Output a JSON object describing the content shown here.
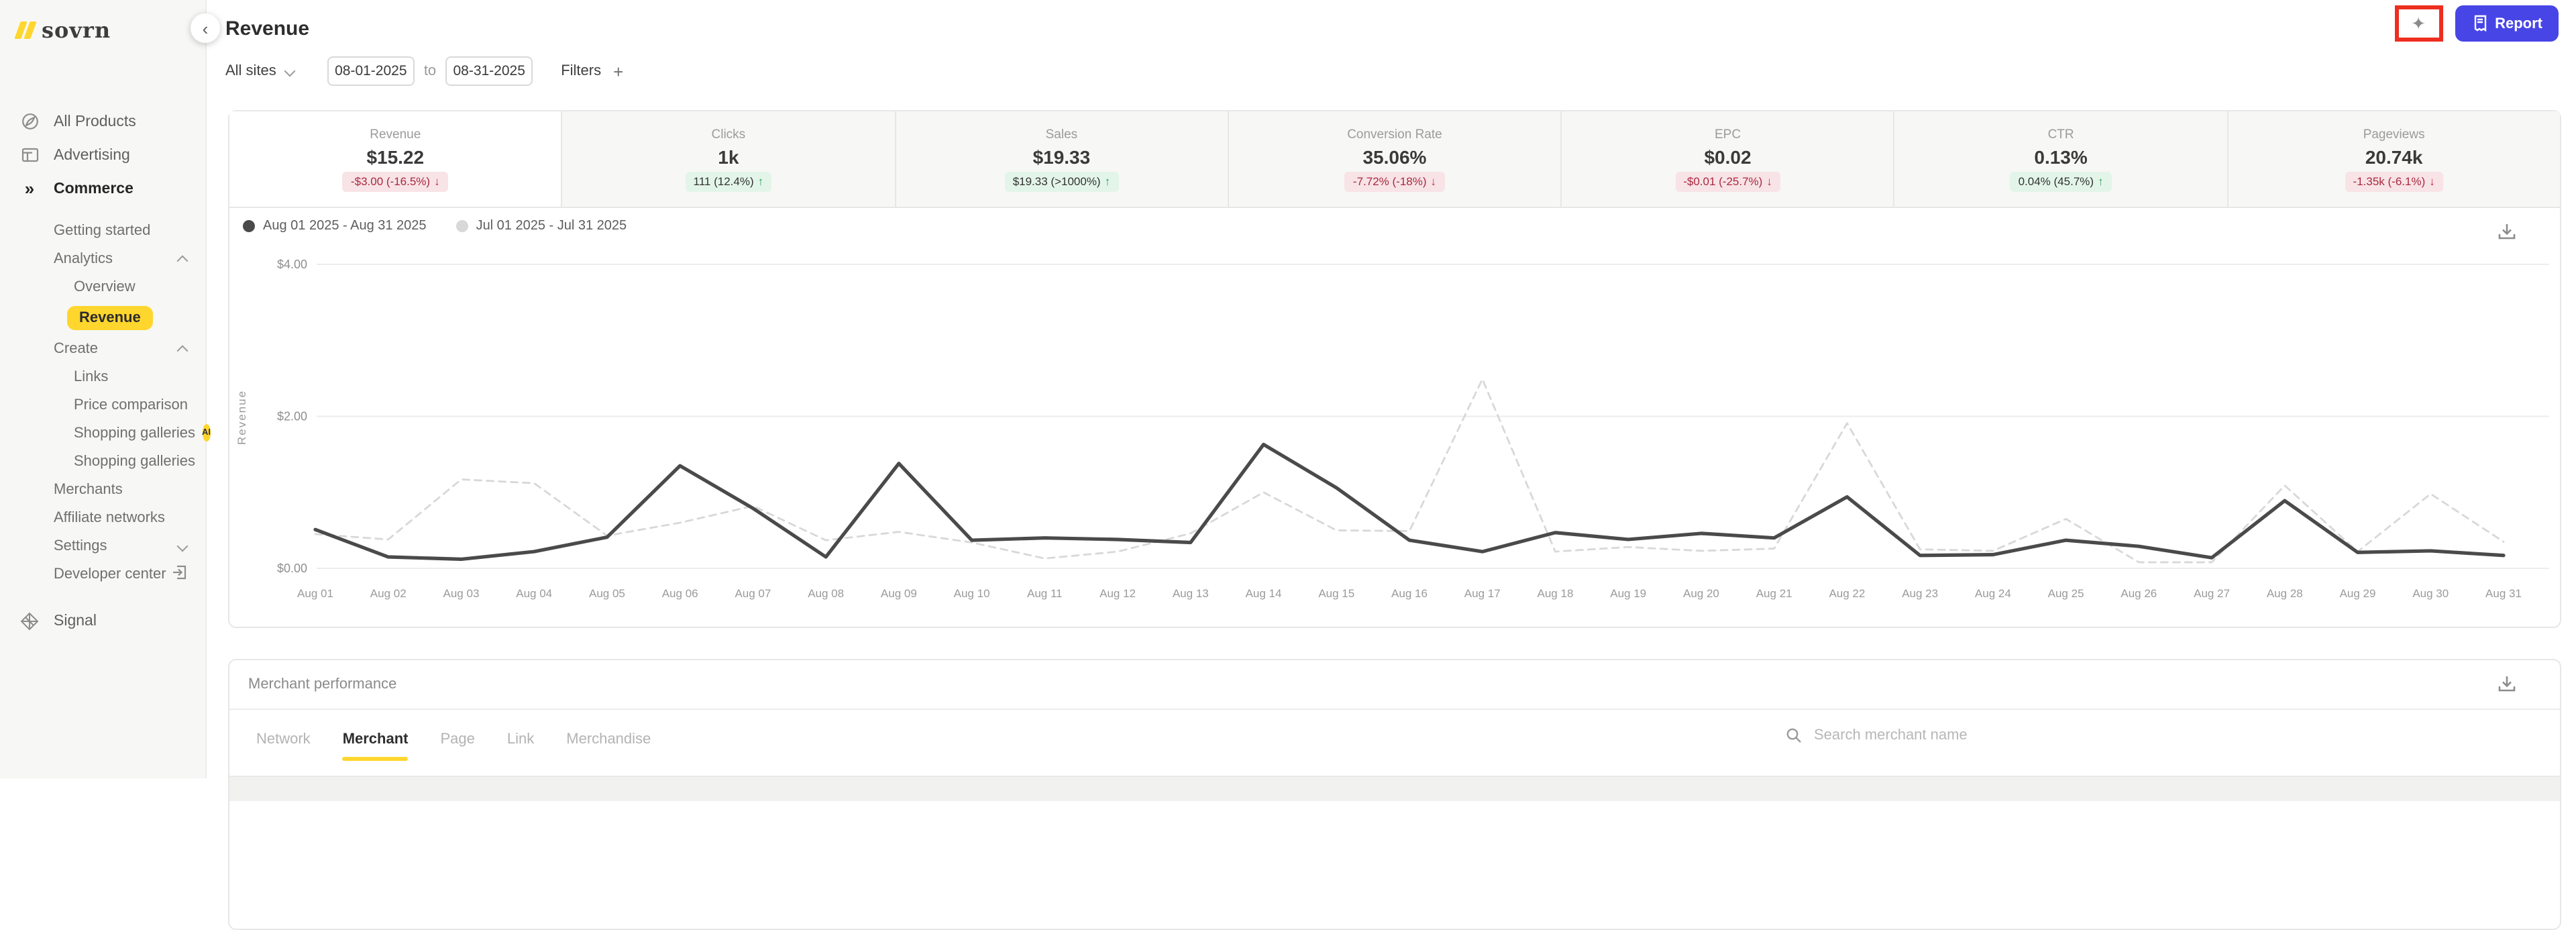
{
  "app": {
    "logo_text": "sovrn"
  },
  "header": {
    "title": "Revenue",
    "back_label": "‹",
    "site_selector": "All sites",
    "date_from": "08-01-2025",
    "to_label": "to",
    "date_to": "08-31-2025",
    "filters_label": "Filters",
    "filters_plus": "+",
    "report_label": "Report",
    "sparkle_glyph": "✦"
  },
  "sidebar": {
    "items": [
      {
        "label": "All Products"
      },
      {
        "label": "Advertising"
      },
      {
        "label": "Commerce",
        "active": true
      },
      {
        "label": "Getting started"
      },
      {
        "label": "Analytics",
        "chevron": "up"
      },
      {
        "label": "Overview"
      },
      {
        "label": "Revenue",
        "selected": true
      },
      {
        "label": "Create",
        "chevron": "up"
      },
      {
        "label": "Links"
      },
      {
        "label": "Price comparison"
      },
      {
        "label": "Shopping galleries",
        "badge": "AI"
      },
      {
        "label": "Shopping galleries"
      },
      {
        "label": "Merchants"
      },
      {
        "label": "Affiliate networks"
      },
      {
        "label": "Settings",
        "chevron": "down"
      },
      {
        "label": "Developer center",
        "icon_right": "external-link"
      },
      {
        "label": "Signal"
      }
    ]
  },
  "kpi": {
    "cards": [
      {
        "label": "Revenue",
        "value": "$15.22",
        "delta": "-$3.00 (-16.5%)",
        "arrow": "↓",
        "sentiment": "negative",
        "active": true
      },
      {
        "label": "Clicks",
        "value": "1k",
        "delta": "111 (12.4%)",
        "arrow": "↑",
        "sentiment": "positive"
      },
      {
        "label": "Sales",
        "value": "$19.33",
        "delta": "$19.33 (>1000%)",
        "arrow": "↑",
        "sentiment": "positive"
      },
      {
        "label": "Conversion Rate",
        "value": "35.06%",
        "delta": "-7.72% (-18%)",
        "arrow": "↓",
        "sentiment": "negative"
      },
      {
        "label": "EPC",
        "value": "$0.02",
        "delta": "-$0.01 (-25.7%)",
        "arrow": "↓",
        "sentiment": "negative"
      },
      {
        "label": "CTR",
        "value": "0.13%",
        "delta": "0.04% (45.7%)",
        "arrow": "↑",
        "sentiment": "positive"
      },
      {
        "label": "Pageviews",
        "value": "20.74k",
        "delta": "-1.35k (-6.1%)",
        "arrow": "↓",
        "sentiment": "negative"
      }
    ]
  },
  "chart_data": {
    "type": "line",
    "title": "",
    "xlabel": "",
    "ylabel": "Revenue",
    "ylim": [
      0,
      4
    ],
    "grid": true,
    "legend_position": "top-left",
    "yticks": [
      {
        "value": 0,
        "label": "$0.00"
      },
      {
        "value": 2,
        "label": "$2.00"
      },
      {
        "value": 4,
        "label": "$4.00"
      }
    ],
    "categories": [
      "Aug 01",
      "Aug 02",
      "Aug 03",
      "Aug 04",
      "Aug 05",
      "Aug 06",
      "Aug 07",
      "Aug 08",
      "Aug 09",
      "Aug 10",
      "Aug 11",
      "Aug 12",
      "Aug 13",
      "Aug 14",
      "Aug 15",
      "Aug 16",
      "Aug 17",
      "Aug 18",
      "Aug 19",
      "Aug 20",
      "Aug 21",
      "Aug 22",
      "Aug 23",
      "Aug 24",
      "Aug 25",
      "Aug 26",
      "Aug 27",
      "Aug 28",
      "Aug 29",
      "Aug 30",
      "Aug 31"
    ],
    "series": [
      {
        "name": "Jul 01 2025 - Jul 31 2025",
        "style": "dashed",
        "color": "#d8d8d8",
        "values": [
          0.45,
          0.38,
          1.17,
          1.12,
          0.43,
          0.6,
          0.82,
          0.37,
          0.48,
          0.34,
          0.13,
          0.22,
          0.46,
          1.0,
          0.5,
          0.49,
          2.49,
          0.22,
          0.28,
          0.23,
          0.26,
          1.91,
          0.25,
          0.23,
          0.65,
          0.08,
          0.08,
          1.09,
          0.22,
          0.98,
          0.35
        ]
      },
      {
        "name": "Aug 01 2025 - Aug 31 2025",
        "style": "solid",
        "color": "#4a4a4a",
        "values": [
          0.51,
          0.15,
          0.12,
          0.22,
          0.41,
          1.35,
          0.79,
          0.15,
          1.38,
          0.37,
          0.4,
          0.38,
          0.34,
          1.63,
          1.06,
          0.37,
          0.22,
          0.47,
          0.38,
          0.46,
          0.4,
          0.94,
          0.17,
          0.18,
          0.37,
          0.29,
          0.14,
          0.89,
          0.21,
          0.23,
          0.17
        ]
      }
    ],
    "legend_order": [
      1,
      0
    ]
  },
  "merchant": {
    "title": "Merchant performance",
    "tabs": [
      {
        "label": "Network"
      },
      {
        "label": "Merchant",
        "active": true
      },
      {
        "label": "Page"
      },
      {
        "label": "Link"
      },
      {
        "label": "Merchandise"
      }
    ],
    "search_placeholder": "Search merchant name"
  },
  "colors": {
    "accent_yellow": "#ffd62e",
    "brand_blue": "#4845e6",
    "annotation_red": "#ee2e1f",
    "negative_red": "#a8293f",
    "negative_bg": "#f8e3e6",
    "positive_green": "#2a9d57",
    "positive_bg": "#e3f5e9",
    "series_current": "#4a4a4a",
    "series_previous": "#d8d8d8"
  }
}
